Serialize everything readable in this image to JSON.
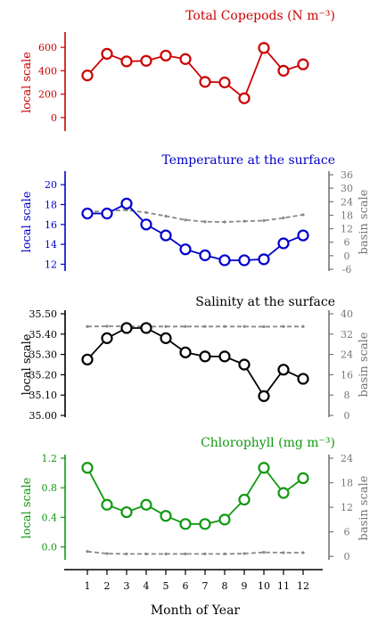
{
  "chart_data": {
    "type": "line",
    "layout": "4 vertically stacked panels sharing the x axis",
    "xlabel": "Month of Year",
    "x": [
      1,
      2,
      3,
      4,
      5,
      6,
      7,
      8,
      9,
      10,
      11,
      12
    ],
    "x_ticks": [
      "1",
      "2",
      "3",
      "4",
      "5",
      "6",
      "7",
      "8",
      "9",
      "10",
      "11",
      "12"
    ],
    "xlim": [
      0.5,
      12.5
    ],
    "panels": [
      {
        "title": "Total Copepods (N m⁻³)",
        "color": "#cc0000",
        "left_axis": {
          "label": "local scale",
          "ylim": [
            -100,
            700
          ],
          "ticks": [
            "0",
            "200",
            "400",
            "600"
          ],
          "tick_values": [
            0,
            200,
            400,
            600
          ]
        },
        "right_axis": null,
        "series": [
          {
            "name": "local",
            "axis": "left",
            "color": "#cc0000",
            "style": "solid",
            "markers": "open-circle",
            "values": [
              360,
              545,
              480,
              485,
              530,
              500,
              305,
              300,
              165,
              595,
              400,
              455
            ]
          }
        ]
      },
      {
        "title": "Temperature at the surface",
        "color": "#0000cc",
        "left_axis": {
          "label": "local scale",
          "ylim": [
            11.5,
            21
          ],
          "ticks": [
            "12",
            "14",
            "16",
            "18",
            "20"
          ],
          "tick_values": [
            12,
            14,
            16,
            18,
            20
          ]
        },
        "right_axis": {
          "label": "basin scale",
          "color": "#777777",
          "ylim": [
            -6,
            36
          ],
          "ticks": [
            "-6",
            "0",
            "6",
            "12",
            "18",
            "24",
            "30",
            "36"
          ],
          "tick_values": [
            -6,
            0,
            6,
            12,
            18,
            24,
            30,
            36
          ]
        },
        "series": [
          {
            "name": "local",
            "axis": "left",
            "color": "#0000cc",
            "style": "solid",
            "markers": "open-circle",
            "values": [
              17.1,
              17.1,
              18.1,
              16.0,
              14.9,
              13.5,
              12.9,
              12.4,
              12.4,
              12.5,
              14.1,
              14.9
            ]
          },
          {
            "name": "basin",
            "axis": "right",
            "color": "#888888",
            "style": "dashed",
            "markers": "dot",
            "values": [
              19.4,
              19.9,
              20.3,
              19.2,
              17.6,
              15.9,
              15.1,
              15.0,
              15.3,
              15.6,
              16.8,
              18.2
            ]
          }
        ]
      },
      {
        "title": "Salinity at the surface",
        "color": "#000000",
        "left_axis": {
          "label": "local scale",
          "ylim": [
            35.0,
            35.5
          ],
          "ticks": [
            "35.00",
            "35.10",
            "35.20",
            "35.30",
            "35.40",
            "35.50"
          ],
          "tick_values": [
            35.0,
            35.1,
            35.2,
            35.3,
            35.4,
            35.5
          ]
        },
        "right_axis": {
          "label": "basin scale",
          "color": "#777777",
          "ylim": [
            0,
            40
          ],
          "ticks": [
            "0",
            "8",
            "16",
            "24",
            "32",
            "40"
          ],
          "tick_values": [
            0,
            8,
            16,
            24,
            32,
            40
          ]
        },
        "series": [
          {
            "name": "local",
            "axis": "left",
            "color": "#000000",
            "style": "solid",
            "markers": "open-circle",
            "values": [
              35.275,
              35.38,
              35.43,
              35.43,
              35.38,
              35.31,
              35.29,
              35.29,
              35.25,
              35.095,
              35.225,
              35.18
            ]
          },
          {
            "name": "basin",
            "axis": "right",
            "color": "#888888",
            "style": "dashed",
            "markers": "dot",
            "values": [
              35.0,
              35.1,
              35.1,
              35.0,
              35.0,
              35.0,
              35.0,
              35.0,
              35.0,
              34.9,
              35.0,
              35.0
            ]
          }
        ]
      },
      {
        "title": "Chlorophyll (mg m⁻³)",
        "color": "#119911",
        "left_axis": {
          "label": "local scale",
          "ylim": [
            -0.15,
            1.2
          ],
          "ticks": [
            "0.0",
            "0.4",
            "0.8",
            "1.2"
          ],
          "tick_values": [
            0.0,
            0.4,
            0.8,
            1.2
          ]
        },
        "right_axis": {
          "label": "basin scale",
          "color": "#777777",
          "ylim": [
            -0.4,
            24
          ],
          "ticks": [
            "0",
            "6",
            "12",
            "18",
            "24"
          ],
          "tick_values": [
            0,
            6,
            12,
            18,
            24
          ]
        },
        "series": [
          {
            "name": "local",
            "axis": "left",
            "color": "#119911",
            "style": "solid",
            "markers": "open-circle",
            "values": [
              1.07,
              0.57,
              0.47,
              0.57,
              0.42,
              0.31,
              0.31,
              0.37,
              0.64,
              1.07,
              0.73,
              0.93
            ]
          },
          {
            "name": "basin",
            "axis": "right",
            "color": "#888888",
            "style": "dashed",
            "markers": "dot",
            "values": [
              1.2,
              0.7,
              0.6,
              0.6,
              0.6,
              0.6,
              0.6,
              0.6,
              0.7,
              1.0,
              0.9,
              0.9
            ]
          }
        ]
      }
    ]
  }
}
